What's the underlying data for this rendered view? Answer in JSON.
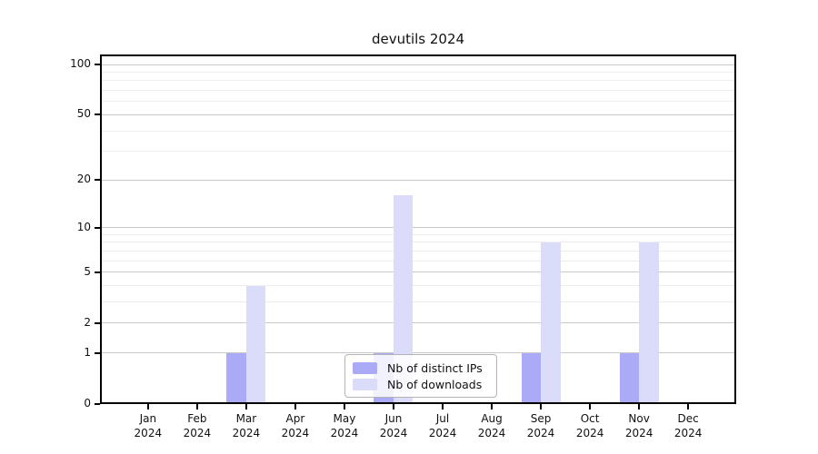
{
  "page": {
    "background": "#ffffff"
  },
  "chart_data": {
    "type": "bar",
    "title": "devutils 2024",
    "categories": [
      "Jan",
      "Feb",
      "Mar",
      "Apr",
      "May",
      "Jun",
      "Jul",
      "Aug",
      "Sep",
      "Oct",
      "Nov",
      "Dec"
    ],
    "x_sublabel": "2024",
    "series": [
      {
        "name": "Nb of distinct IPs",
        "color": "#aaaaf7",
        "values": [
          0,
          0,
          1,
          0,
          0,
          1,
          0,
          0,
          1,
          0,
          1,
          0
        ]
      },
      {
        "name": "Nb of downloads",
        "color": "#dbdbfa",
        "values": [
          0,
          0,
          4,
          0,
          0,
          16,
          0,
          0,
          8,
          0,
          8,
          0
        ]
      }
    ],
    "y_scale": "symlog ln(1+v)",
    "y_ticks": [
      0,
      1,
      2,
      5,
      10,
      20,
      50,
      100
    ],
    "y_minor_gridlines": [
      3,
      4,
      6,
      7,
      8,
      9,
      30,
      40,
      60,
      70,
      80,
      90
    ],
    "ylim": [
      0,
      114.7
    ],
    "grid": true,
    "legend_position": "lower center",
    "colors": {
      "major_grid": "#c8c8c8",
      "minor_grid": "#ededed",
      "axis": "#000000",
      "text": "#111111",
      "legend_border": "#b3b3b3",
      "background": "#ffffff"
    }
  }
}
